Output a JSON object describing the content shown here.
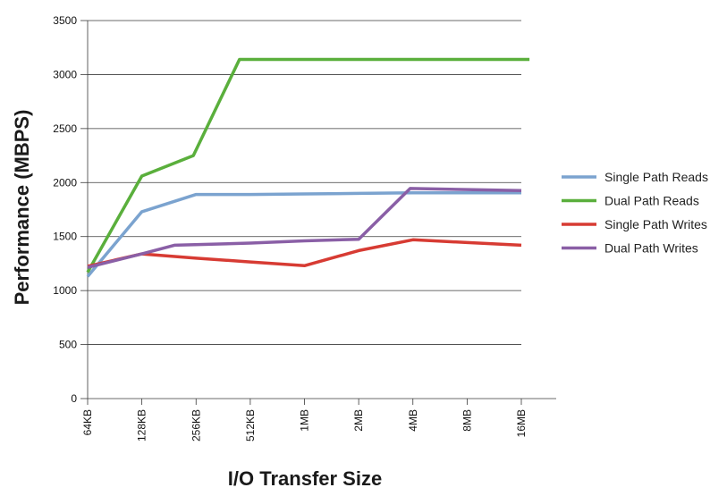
{
  "chart_data": {
    "type": "line",
    "title": "",
    "xlabel": "I/O Transfer Size",
    "ylabel": "Performance (MBPS)",
    "categories": [
      "64KB",
      "128KB",
      "256KB",
      "512KB",
      "1MB",
      "2MB",
      "4MB",
      "8MB",
      "16MB"
    ],
    "ylim": [
      0,
      3500
    ],
    "yticks": [
      0,
      500,
      1000,
      1500,
      2000,
      2500,
      3000,
      3500
    ],
    "grid": true,
    "legend_position": "right",
    "series": [
      {
        "name": "Single Path Reads",
        "color": "#7ba3cf",
        "points": [
          [
            0,
            1130
          ],
          [
            1,
            1730
          ],
          [
            2,
            1890
          ],
          [
            3,
            1890
          ],
          [
            4,
            1895
          ],
          [
            5,
            1900
          ],
          [
            6,
            1905
          ],
          [
            7,
            1905
          ],
          [
            8,
            1905
          ]
        ]
      },
      {
        "name": "Dual Path Reads",
        "color": "#5aaf3c",
        "points": [
          [
            0,
            1170
          ],
          [
            1,
            2060
          ],
          [
            1.95,
            2250
          ],
          [
            2.8,
            3140
          ],
          [
            4,
            3140
          ],
          [
            5,
            3140
          ],
          [
            6,
            3140
          ],
          [
            7,
            3140
          ],
          [
            8.15,
            3140
          ]
        ]
      },
      {
        "name": "Single Path Writes",
        "color": "#d73b33",
        "points": [
          [
            0,
            1225
          ],
          [
            1,
            1340
          ],
          [
            2,
            1300
          ],
          [
            3,
            1265
          ],
          [
            4,
            1230
          ],
          [
            5,
            1370
          ],
          [
            6,
            1470
          ],
          [
            7,
            1445
          ],
          [
            8,
            1420
          ]
        ]
      },
      {
        "name": "Dual Path Writes",
        "color": "#8a5fa6",
        "points": [
          [
            0,
            1215
          ],
          [
            1,
            1340
          ],
          [
            1.6,
            1420
          ],
          [
            3,
            1440
          ],
          [
            4,
            1460
          ],
          [
            5,
            1475
          ],
          [
            5.95,
            1945
          ],
          [
            7,
            1935
          ],
          [
            8,
            1925
          ]
        ]
      }
    ]
  }
}
